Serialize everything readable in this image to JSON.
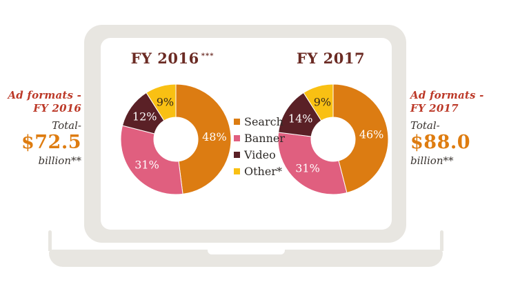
{
  "page": {
    "background": "#ffffff"
  },
  "laptop": {
    "frame_color": "#e8e6e1",
    "screen_color": "#ffffff"
  },
  "colors": {
    "title_maroon": "#6b2b24",
    "panel_red": "#bc3928",
    "panel_orange": "#de7c10",
    "panel_dark": "#38322e",
    "legend_text": "#2e2a27"
  },
  "left_panel": {
    "heading_line1": "Ad formats -",
    "heading_line2": "FY 2016",
    "total_label": "Total-",
    "amount": "$72.5",
    "unit": "billion**"
  },
  "right_panel": {
    "heading_line1": "Ad formats -",
    "heading_line2": "FY 2017",
    "total_label": "Total-",
    "amount": "$88.0",
    "unit": "billion**"
  },
  "legend": {
    "position": "center-between-charts",
    "items": [
      {
        "label": "Search",
        "color": "#dc7c12"
      },
      {
        "label": "Banner",
        "color": "#e05f7f"
      },
      {
        "label": "Video",
        "color": "#5a2026"
      },
      {
        "label": "Other*",
        "color": "#f9c013"
      }
    ]
  },
  "chart_data": [
    {
      "type": "pie",
      "subtype": "donut",
      "title": "FY 2016",
      "title_suffix": "***",
      "categories": [
        "Search",
        "Banner",
        "Video",
        "Other*"
      ],
      "values": [
        48,
        31,
        12,
        9
      ],
      "labels": [
        "48%",
        "31%",
        "12%",
        "9%"
      ],
      "unit": "%",
      "colors": [
        "#dc7c12",
        "#e05f7f",
        "#5a2026",
        "#f9c013"
      ],
      "label_colors": [
        "#ffffff",
        "#ffffff",
        "#ffffff",
        "#33261c"
      ],
      "start_angle_deg": 0,
      "direction": "clockwise",
      "total_annotation": "$72.5 billion**"
    },
    {
      "type": "pie",
      "subtype": "donut",
      "title": "FY 2017",
      "title_suffix": "",
      "categories": [
        "Search",
        "Banner",
        "Video",
        "Other*"
      ],
      "values": [
        46,
        31,
        14,
        9
      ],
      "labels": [
        "46%",
        "31%",
        "14%",
        "9%"
      ],
      "unit": "%",
      "colors": [
        "#dc7c12",
        "#e05f7f",
        "#5a2026",
        "#f9c013"
      ],
      "label_colors": [
        "#ffffff",
        "#ffffff",
        "#ffffff",
        "#33261c"
      ],
      "start_angle_deg": 0,
      "direction": "clockwise",
      "total_annotation": "$88.0 billion**"
    }
  ]
}
